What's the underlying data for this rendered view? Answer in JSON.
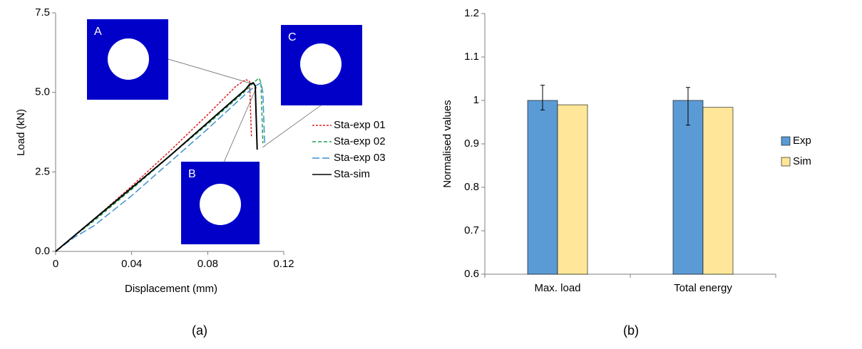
{
  "chart_data": [
    {
      "type": "line",
      "x_label": "Displacement (mm)",
      "y_label": "Load (kN)",
      "caption": "(a)",
      "xlim": [
        0,
        0.12
      ],
      "xticks": [
        0,
        0.04,
        0.08,
        0.12
      ],
      "ylim": [
        0,
        7.5
      ],
      "yticks": [
        {
          "value": 0,
          "label": "0.0"
        },
        {
          "value": 2.5,
          "label": "2.5"
        },
        {
          "value": 5,
          "label": "5.0"
        },
        {
          "value": 7.5,
          "label": "7.5"
        }
      ],
      "series": [
        {
          "name": "Sta-exp 01",
          "color": "#e02020",
          "style": "dotted",
          "x": [
            0,
            0.01,
            0.02,
            0.04,
            0.06,
            0.08,
            0.095,
            0.1,
            0.102,
            0.103
          ],
          "values": [
            0,
            0.5,
            1.0,
            2.05,
            3.15,
            4.3,
            5.2,
            5.4,
            5.35,
            3.6
          ]
        },
        {
          "name": "Sta-exp 02",
          "color": "#1fa055",
          "style": "dashed",
          "x": [
            0,
            0.01,
            0.02,
            0.04,
            0.06,
            0.08,
            0.1,
            0.105,
            0.107,
            0.108,
            0.109
          ],
          "values": [
            0,
            0.5,
            0.95,
            1.95,
            3.0,
            4.0,
            5.05,
            5.35,
            5.45,
            5.3,
            3.4
          ]
        },
        {
          "name": "Sta-exp 03",
          "color": "#3f8fcf",
          "style": "long-dash",
          "x": [
            0,
            0.01,
            0.02,
            0.04,
            0.06,
            0.08,
            0.1,
            0.105,
            0.108,
            0.109,
            0.11
          ],
          "values": [
            0,
            0.45,
            0.8,
            1.75,
            2.8,
            3.85,
            4.95,
            5.2,
            5.3,
            5.0,
            3.3
          ]
        },
        {
          "name": "Sta-sim",
          "color": "#000000",
          "style": "solid",
          "x": [
            0,
            0.02,
            0.04,
            0.06,
            0.08,
            0.1,
            0.102,
            0.104,
            0.105,
            0.106
          ],
          "values": [
            0,
            1.0,
            2.0,
            3.0,
            4.05,
            5.1,
            5.25,
            5.3,
            5.2,
            3.2
          ]
        }
      ],
      "annotations": [
        "A",
        "B",
        "C"
      ]
    },
    {
      "type": "bar",
      "y_label": "Normalised values",
      "caption": "(b)",
      "categories": [
        "Max. load",
        "Total energy"
      ],
      "ylim": [
        0.6,
        1.2
      ],
      "yticks": [
        0.6,
        0.7,
        0.8,
        0.9,
        1,
        1.1,
        1.2
      ],
      "series": [
        {
          "name": "Exp",
          "color": "#5b9bd5",
          "values": [
            1,
            1
          ],
          "error_plus": [
            0.035,
            0.03
          ],
          "error_minus": [
            0.022,
            0.057
          ]
        },
        {
          "name": "Sim",
          "color": "#ffe699",
          "values": [
            0.99,
            0.984
          ]
        }
      ]
    }
  ]
}
